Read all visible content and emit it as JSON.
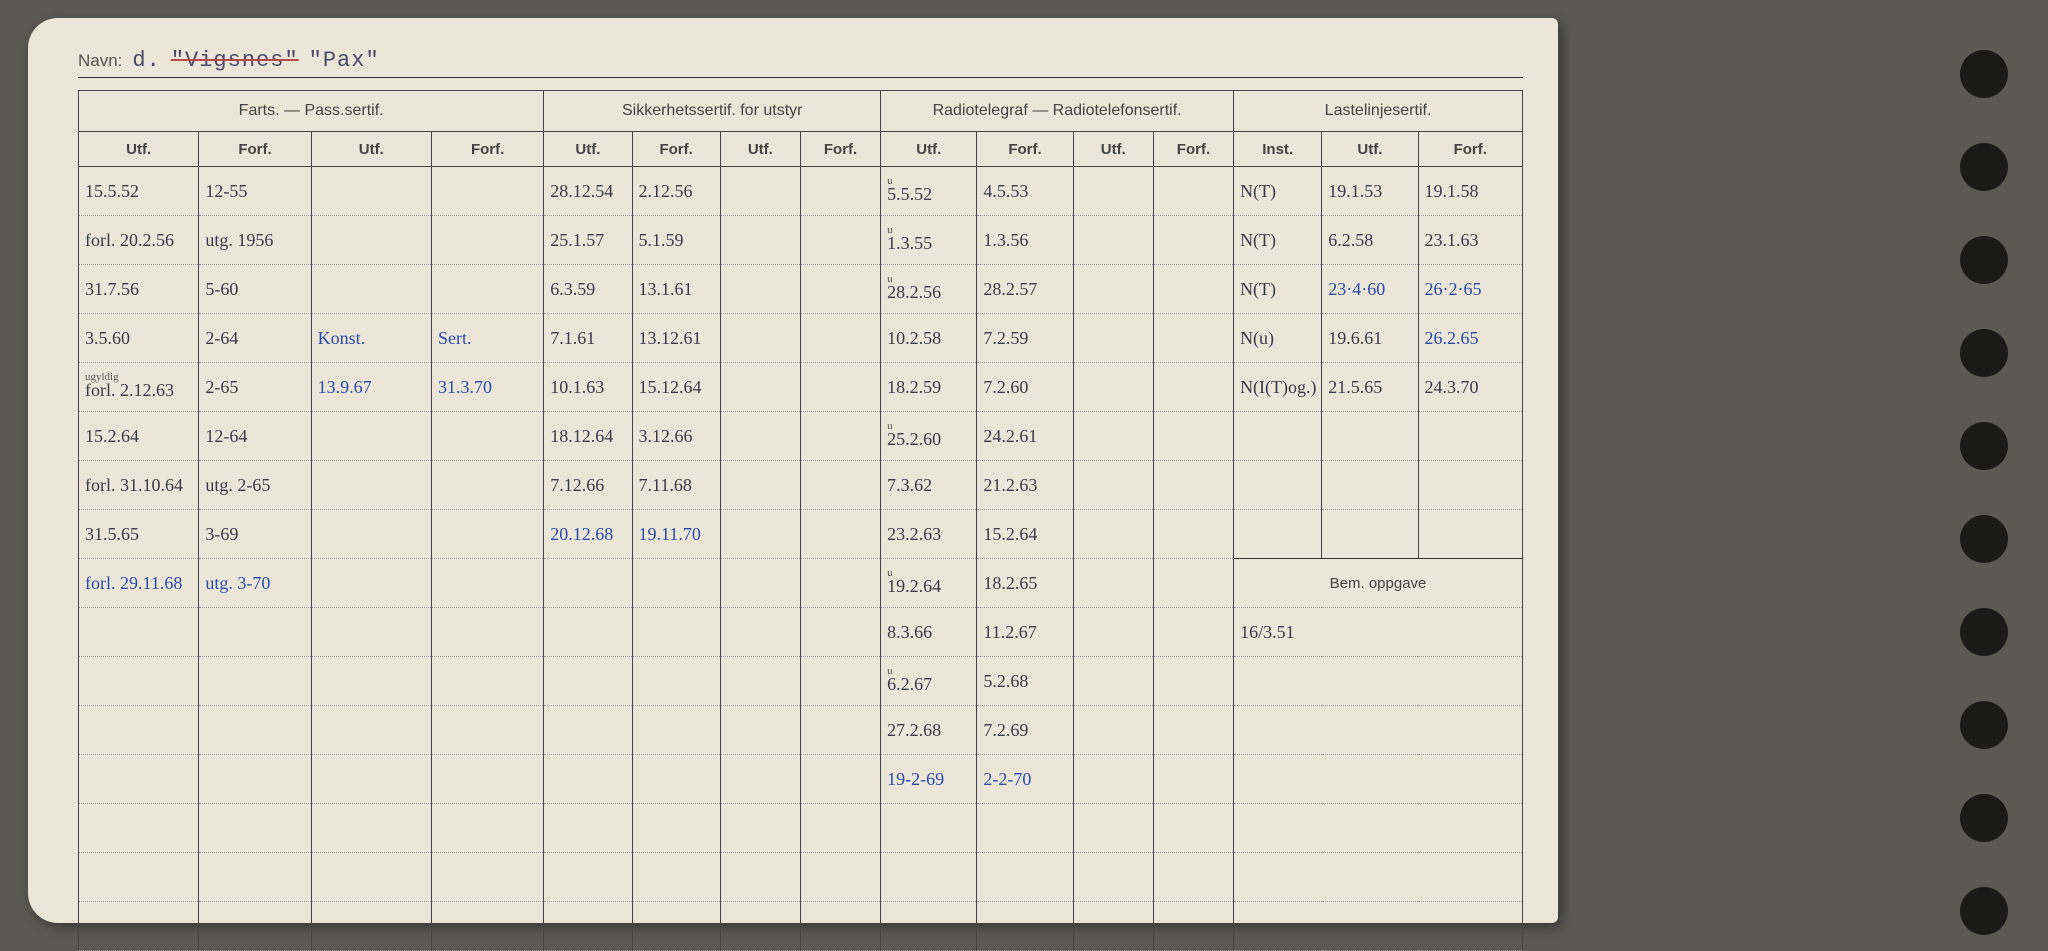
{
  "navn": {
    "label": "Navn:",
    "prefix": "d.",
    "strikeout": "\"Vigsnes\"",
    "name": "\"Pax\""
  },
  "headers": {
    "group1": "Farts. — Pass.sertif.",
    "group2": "Sikkerhetssertif. for utstyr",
    "group3": "Radiotelegraf — Radiotelefonsertif.",
    "group4": "Lastelinjesertif.",
    "utf": "Utf.",
    "forf": "Forf.",
    "inst": "Inst.",
    "bem": "Bem. oppgave"
  },
  "rows": [
    {
      "c0": "15.5.52",
      "c1": "12-55",
      "c2": "",
      "c3": "",
      "c4": "28.12.54",
      "c5": "2.12.56",
      "c6": "",
      "c7": "",
      "c8": "5.5.52",
      "c8a": "u",
      "c9": "4.5.53",
      "c10": "",
      "c11": "",
      "c12": "N(T)",
      "c13": "19.1.53",
      "c14": "19.1.58"
    },
    {
      "c0": "forl. 20.2.56",
      "c1": "utg. 1956",
      "c2": "",
      "c3": "",
      "c4": "25.1.57",
      "c5": "5.1.59",
      "c6": "",
      "c7": "",
      "c8": "1.3.55",
      "c8a": "u",
      "c9": "1.3.56",
      "c10": "",
      "c11": "",
      "c12": "N(T)",
      "c13": "6.2.58",
      "c14": "23.1.63"
    },
    {
      "c0": "31.7.56",
      "c1": "5-60",
      "c2": "",
      "c3": "",
      "c4": "6.3.59",
      "c5": "13.1.61",
      "c6": "",
      "c7": "",
      "c8": "28.2.56",
      "c8a": "u",
      "c9": "28.2.57",
      "c10": "",
      "c11": "",
      "c12": "N(T)",
      "c13": "23·4·60",
      "c13blue": true,
      "c14": "26·2·65",
      "c14blue": true
    },
    {
      "c0": "3.5.60",
      "c1": "2-64",
      "c2": "Konst.",
      "c2blue": true,
      "c3": "Sert.",
      "c3blue": true,
      "c4": "7.1.61",
      "c5": "13.12.61",
      "c6": "",
      "c7": "",
      "c8": "10.2.58",
      "c9": "7.2.59",
      "c10": "",
      "c11": "",
      "c12": "N(u)",
      "c13": "19.6.61",
      "c14": "26.2.65",
      "c14blue": true
    },
    {
      "c0": "forl. 2.12.63",
      "c0a": "ugyldig",
      "c1": "2-65",
      "c2": "13.9.67",
      "c2blue": true,
      "c3": "31.3.70",
      "c3blue": true,
      "c4": "10.1.63",
      "c5": "15.12.64",
      "c6": "",
      "c7": "",
      "c8": "18.2.59",
      "c9": "7.2.60",
      "c10": "",
      "c11": "",
      "c12": "N(I(T)og.)",
      "c13": "21.5.65",
      "c14": "24.3.70"
    },
    {
      "c0": "15.2.64",
      "c1": "12-64",
      "c2": "",
      "c3": "",
      "c4": "18.12.64",
      "c5": "3.12.66",
      "c6": "",
      "c7": "",
      "c8": "25.2.60",
      "c8a": "u",
      "c9": "24.2.61",
      "c10": "",
      "c11": "",
      "c12": "",
      "c13": "",
      "c14": ""
    },
    {
      "c0": "forl. 31.10.64",
      "c1": "utg. 2-65",
      "c2": "",
      "c3": "",
      "c4": "7.12.66",
      "c5": "7.11.68",
      "c6": "",
      "c7": "",
      "c8": "7.3.62",
      "c9": "21.2.63",
      "c10": "",
      "c11": "",
      "c12": "",
      "c13": "",
      "c14": ""
    },
    {
      "c0": "31.5.65",
      "c1": "3-69",
      "c2": "",
      "c3": "",
      "c4": "20.12.68",
      "c4blue": true,
      "c5": "19.11.70",
      "c5blue": true,
      "c6": "",
      "c7": "",
      "c8": "23.2.63",
      "c9": "15.2.64",
      "c10": "",
      "c11": "",
      "bem_start": true
    },
    {
      "c0": "forl. 29.11.68",
      "c0blue": true,
      "c1": "utg. 3-70",
      "c1blue": true,
      "c2": "",
      "c3": "",
      "c4": "",
      "c5": "",
      "c6": "",
      "c7": "",
      "c8": "19.2.64",
      "c8a": "u",
      "c9": "18.2.65",
      "c10": "",
      "c11": "",
      "bem_header": true
    },
    {
      "c0": "",
      "c1": "",
      "c2": "",
      "c3": "",
      "c4": "",
      "c5": "",
      "c6": "",
      "c7": "",
      "c8": "8.3.66",
      "c9": "11.2.67",
      "c10": "",
      "c11": "",
      "bem": "16/3.51"
    },
    {
      "c0": "",
      "c1": "",
      "c2": "",
      "c3": "",
      "c4": "",
      "c5": "",
      "c6": "",
      "c7": "",
      "c8": "6.2.67",
      "c8a": "u",
      "c9": "5.2.68",
      "c10": "",
      "c11": "",
      "bem": ""
    },
    {
      "c0": "",
      "c1": "",
      "c2": "",
      "c3": "",
      "c4": "",
      "c5": "",
      "c6": "",
      "c7": "",
      "c8": "27.2.68",
      "c9": "7.2.69",
      "c10": "",
      "c11": "",
      "bem": ""
    },
    {
      "c0": "",
      "c1": "",
      "c2": "",
      "c3": "",
      "c4": "",
      "c5": "",
      "c6": "",
      "c7": "",
      "c8": "19-2-69",
      "c8blue": true,
      "c9": "2-2-70",
      "c9blue": true,
      "c10": "",
      "c11": "",
      "bem": ""
    }
  ],
  "col_widths": [
    7.5,
    7,
    7.5,
    7,
    5.5,
    5.5,
    5,
    5,
    6,
    6,
    5,
    5,
    5.5,
    6,
    6.5
  ]
}
